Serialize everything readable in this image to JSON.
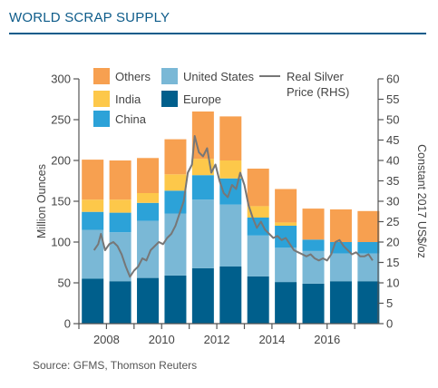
{
  "header": {
    "title": "WORLD SCRAP SUPPLY"
  },
  "footer": {
    "source": "Source: GFMS, Thomson Reuters"
  },
  "chart_data": {
    "type": "bar",
    "title": "WORLD SCRAP SUPPLY",
    "ylabel": "Million Ounces",
    "y2label": "Constant 2017 US$/oz",
    "ylim": [
      0,
      300
    ],
    "y2lim": [
      0,
      60
    ],
    "yticks": [
      0,
      50,
      100,
      150,
      200,
      250,
      300
    ],
    "y2ticks": [
      0,
      5,
      10,
      15,
      20,
      25,
      30,
      35,
      40,
      45,
      50,
      55,
      60
    ],
    "categories": [
      "2007",
      "2008",
      "2009",
      "2010",
      "2011",
      "2012",
      "2013",
      "2014",
      "2015",
      "2016",
      "2017"
    ],
    "xtick_labels": [
      "2008",
      "2010",
      "2012",
      "2014",
      "2016"
    ],
    "series": [
      {
        "name": "Europe",
        "color": "#005f8c",
        "values": [
          55,
          52,
          56,
          59,
          68,
          70,
          58,
          51,
          49,
          52,
          52
        ]
      },
      {
        "name": "United States",
        "color": "#7ab8d6",
        "values": [
          60,
          60,
          70,
          76,
          84,
          76,
          50,
          42,
          40,
          34,
          34
        ]
      },
      {
        "name": "China",
        "color": "#2ca2d8",
        "values": [
          22,
          24,
          22,
          28,
          30,
          32,
          22,
          27,
          14,
          14,
          14
        ]
      },
      {
        "name": "India",
        "color": "#fdc84a",
        "values": [
          15,
          16,
          12,
          20,
          20,
          22,
          14,
          4,
          0,
          0,
          0
        ]
      },
      {
        "name": "Others",
        "color": "#f7a050",
        "values": [
          49,
          48,
          43,
          43,
          58,
          54,
          46,
          41,
          38,
          40,
          38
        ]
      }
    ],
    "line": {
      "name": "Real Silver Price (RHS)",
      "color": "#777777",
      "axis": "right",
      "x": [
        2007.55,
        2007.7,
        2007.8,
        2007.95,
        2008.1,
        2008.25,
        2008.4,
        2008.55,
        2008.7,
        2008.85,
        2009.0,
        2009.15,
        2009.3,
        2009.45,
        2009.6,
        2009.75,
        2009.9,
        2010.05,
        2010.2,
        2010.35,
        2010.5,
        2010.65,
        2010.8,
        2010.95,
        2011.1,
        2011.2,
        2011.35,
        2011.5,
        2011.65,
        2011.8,
        2011.95,
        2012.1,
        2012.25,
        2012.4,
        2012.55,
        2012.7,
        2012.85,
        2013.0,
        2013.15,
        2013.3,
        2013.45,
        2013.6,
        2013.75,
        2013.9,
        2014.05,
        2014.2,
        2014.35,
        2014.5,
        2014.65,
        2014.8,
        2014.95,
        2015.1,
        2015.25,
        2015.4,
        2015.55,
        2015.7,
        2015.85,
        2016.0,
        2016.15,
        2016.3,
        2016.45,
        2016.6,
        2016.75,
        2016.9,
        2017.05,
        2017.2,
        2017.35,
        2017.5,
        2017.65
      ],
      "y": [
        18,
        19.5,
        22,
        18,
        19.5,
        20,
        19,
        17,
        14,
        11.5,
        13,
        14,
        16,
        15.5,
        18,
        19,
        20,
        19.5,
        21,
        22,
        24,
        27,
        30,
        37,
        39,
        46,
        42,
        41,
        43,
        37,
        39,
        35,
        32,
        31,
        34,
        33,
        37,
        34,
        29,
        26,
        23.5,
        25,
        23,
        22,
        21,
        21.5,
        20.5,
        21,
        19.5,
        18,
        17.5,
        17,
        16.5,
        17,
        16,
        15.5,
        16,
        15.5,
        17,
        20,
        20.5,
        19,
        18,
        17,
        17.5,
        16.5,
        16.5,
        17,
        15.5
      ]
    },
    "legend": {
      "position": "top",
      "entries": [
        "Others",
        "United States",
        "Real Silver Price (RHS)",
        "India",
        "Europe",
        "China"
      ]
    },
    "grid": false
  }
}
